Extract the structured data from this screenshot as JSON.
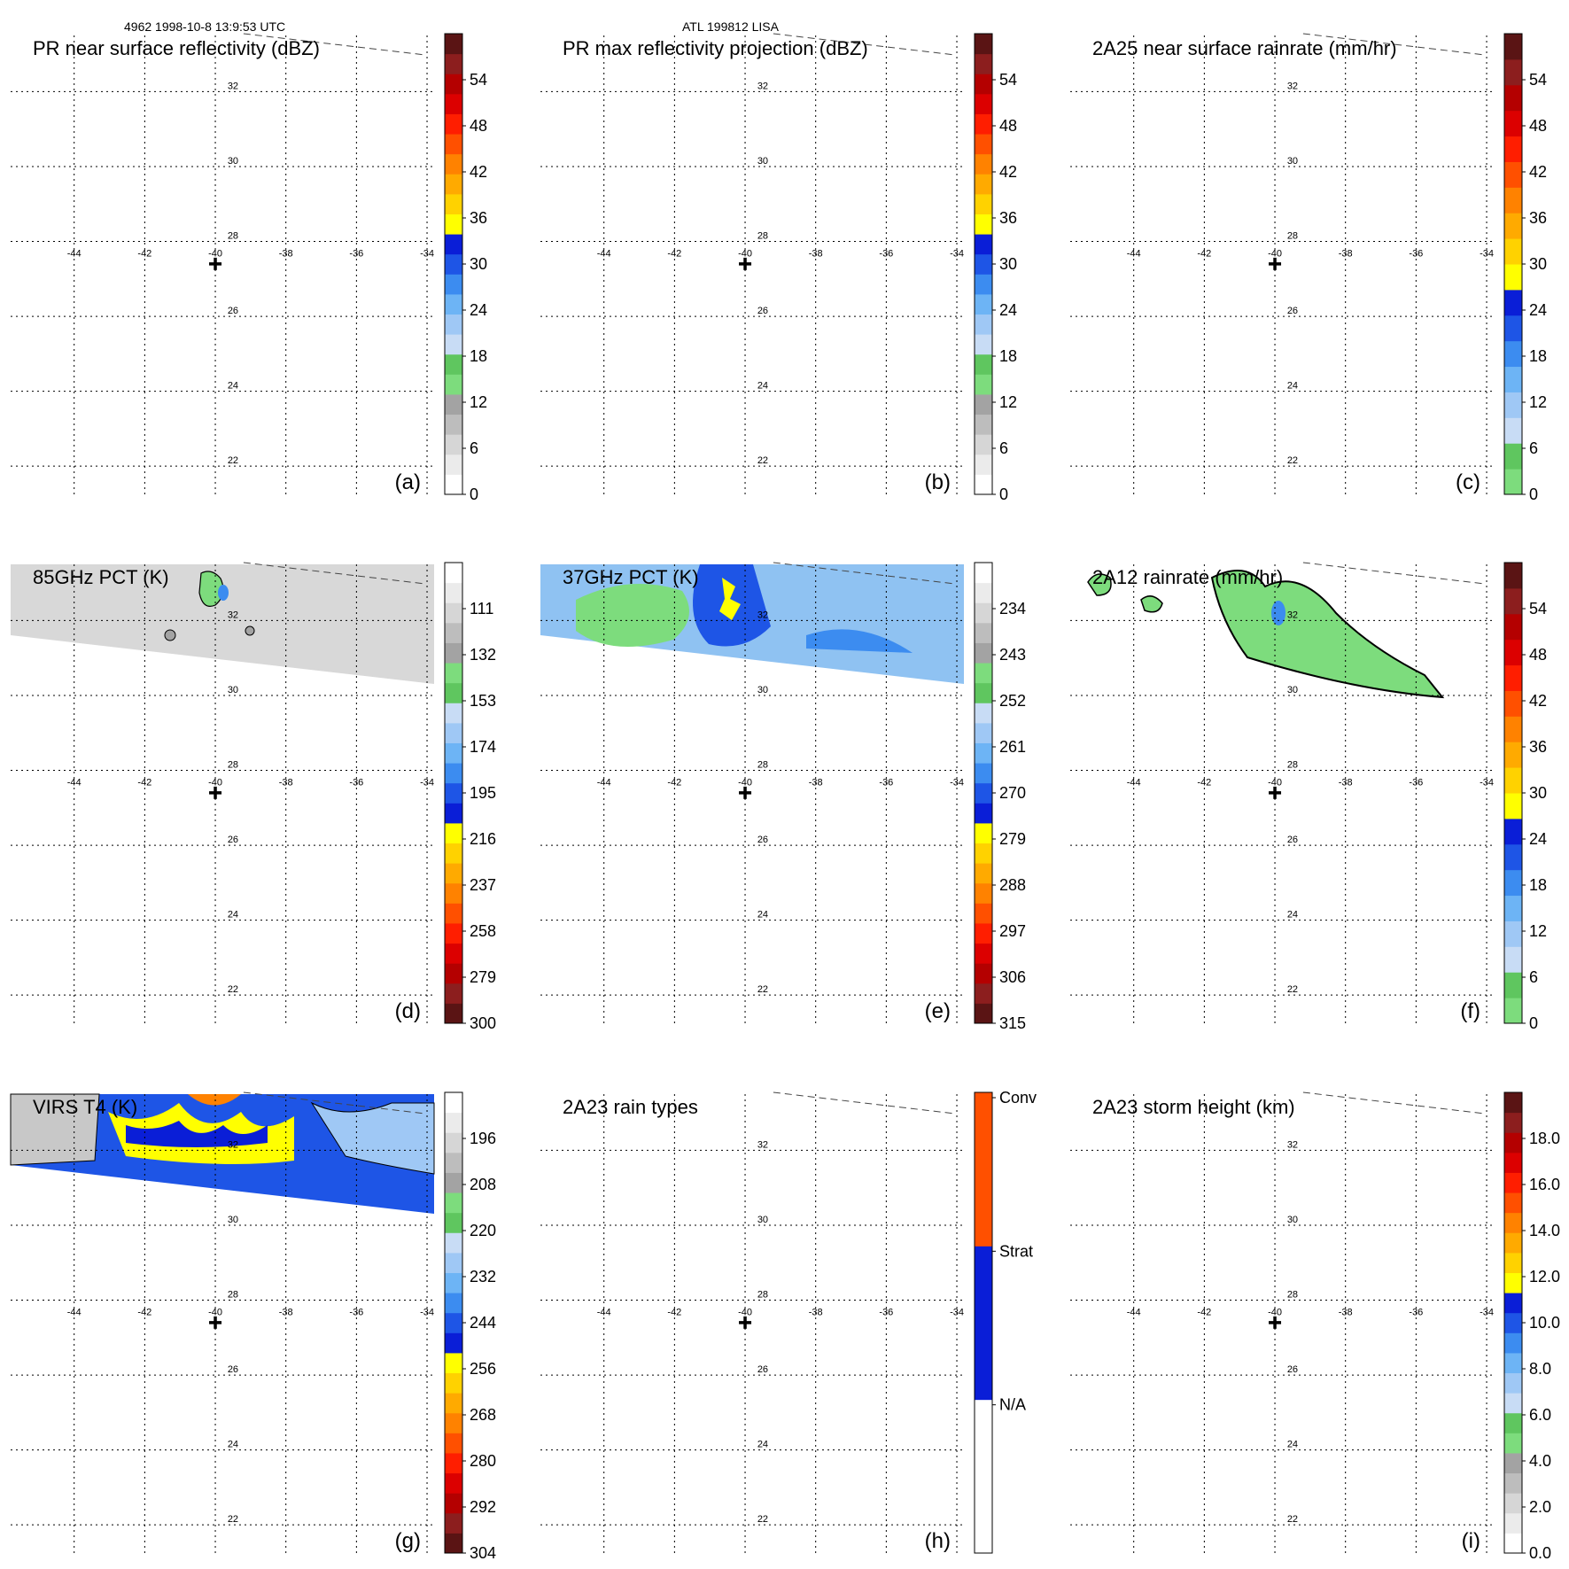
{
  "header": {
    "left": "4962 1998-10-8 13:9:53 UTC",
    "center": "ATL 199812 LISA"
  },
  "colors": {
    "dbz": [
      "#ffffff",
      "#ebebeb",
      "#d6d6d6",
      "#bdbdbd",
      "#a3a3a3",
      "#7ddc7d",
      "#5fc65f",
      "#c8dcf5",
      "#9fc8f5",
      "#6db4f5",
      "#3c8cf0",
      "#1e55e6",
      "#0a1ed7",
      "#ffff00",
      "#ffd200",
      "#ffaa00",
      "#ff8200",
      "#ff5000",
      "#ff1e00",
      "#dc0000",
      "#b40000",
      "#8c1e1e",
      "#5a1414"
    ],
    "rain": [
      "#7ddc7d",
      "#5fc65f",
      "#c8dcf5",
      "#9fc8f5",
      "#6db4f5",
      "#3c8cf0",
      "#1e55e6",
      "#0a1ed7",
      "#ffff00",
      "#ffd200",
      "#ffaa00",
      "#ff8200",
      "#ff5000",
      "#ff1e00",
      "#dc0000",
      "#b40000",
      "#8c1e1e",
      "#5a1414"
    ],
    "tb": [
      "#5a1414",
      "#8c1e1e",
      "#b40000",
      "#dc0000",
      "#ff1e00",
      "#ff5000",
      "#ff8200",
      "#ffaa00",
      "#ffd200",
      "#ffff00",
      "#0a1ed7",
      "#1e55e6",
      "#3c8cf0",
      "#6db4f5",
      "#9fc8f5",
      "#c8dcf5",
      "#5fc65f",
      "#7ddc7d",
      "#a3a3a3",
      "#bdbdbd",
      "#d6d6d6",
      "#ebebeb",
      "#ffffff"
    ],
    "height": [
      "#ffffff",
      "#ebebeb",
      "#d6d6d6",
      "#bdbdbd",
      "#a3a3a3",
      "#7ddc7d",
      "#5fc65f",
      "#c8dcf5",
      "#9fc8f5",
      "#6db4f5",
      "#3c8cf0",
      "#1e55e6",
      "#0a1ed7",
      "#ffff00",
      "#ffd200",
      "#ffaa00",
      "#ff8200",
      "#ff5000",
      "#ff1e00",
      "#dc0000",
      "#b40000",
      "#8c1e1e",
      "#5a1414"
    ],
    "types": [
      "#ffffff",
      "#0a1ed7",
      "#ff5000"
    ]
  },
  "chart_data": [
    {
      "type": "heatmap",
      "panel": "(a)",
      "title": "PR near surface reflectivity (dBZ)",
      "lon_ticks": [
        "-44",
        "-42",
        "-40",
        "-38",
        "-36",
        "-34"
      ],
      "lat_ticks": [
        "32",
        "30",
        "28",
        "26",
        "24",
        "22"
      ],
      "lon_range": [
        -45.8,
        -33.8
      ],
      "lat_range": [
        21.2,
        33.5
      ],
      "center": [
        -40,
        27.4
      ],
      "colorbar": {
        "labels": [
          "0",
          "6",
          "12",
          "18",
          "24",
          "30",
          "36",
          "42",
          "48",
          "54"
        ],
        "scale": "dbz"
      },
      "swath": null
    },
    {
      "type": "heatmap",
      "panel": "(b)",
      "title": "PR max reflectivity projection (dBZ)",
      "lon_ticks": [
        "-44",
        "-42",
        "-40",
        "-38",
        "-36",
        "-34"
      ],
      "lat_ticks": [
        "32",
        "30",
        "28",
        "26",
        "24",
        "22"
      ],
      "lon_range": [
        -45.8,
        -33.8
      ],
      "lat_range": [
        21.2,
        33.5
      ],
      "center": [
        -40,
        27.4
      ],
      "colorbar": {
        "labels": [
          "0",
          "6",
          "12",
          "18",
          "24",
          "30",
          "36",
          "42",
          "48",
          "54"
        ],
        "scale": "dbz"
      },
      "swath": null
    },
    {
      "type": "heatmap",
      "panel": "(c)",
      "title": "2A25 near surface rainrate (mm/hr)",
      "lon_ticks": [
        "-44",
        "-42",
        "-40",
        "-38",
        "-36",
        "-34"
      ],
      "lat_ticks": [
        "32",
        "30",
        "28",
        "26",
        "24",
        "22"
      ],
      "lon_range": [
        -45.8,
        -33.8
      ],
      "lat_range": [
        21.2,
        33.5
      ],
      "center": [
        -40,
        27.4
      ],
      "colorbar": {
        "labels": [
          "0",
          "6",
          "12",
          "18",
          "24",
          "30",
          "36",
          "42",
          "48",
          "54"
        ],
        "scale": "rain"
      },
      "swath": null
    },
    {
      "type": "heatmap",
      "panel": "(d)",
      "title": "85GHz PCT (K)",
      "lon_ticks": [
        "-44",
        "-42",
        "-40",
        "-38",
        "-36",
        "-34"
      ],
      "lat_ticks": [
        "32",
        "30",
        "28",
        "26",
        "24",
        "22"
      ],
      "lon_range": [
        -45.8,
        -33.8
      ],
      "lat_range": [
        21.2,
        33.5
      ],
      "center": [
        -40,
        27.4
      ],
      "colorbar": {
        "labels": [
          "300",
          "279",
          "258",
          "237",
          "216",
          "195",
          "174",
          "153",
          "132",
          "111"
        ],
        "scale": "tb"
      },
      "swath": "gray"
    },
    {
      "type": "heatmap",
      "panel": "(e)",
      "title": "37GHz PCT (K)",
      "lon_ticks": [
        "-44",
        "-42",
        "-40",
        "-38",
        "-36",
        "-34"
      ],
      "lat_ticks": [
        "32",
        "30",
        "28",
        "26",
        "24",
        "22"
      ],
      "lon_range": [
        -45.8,
        -33.8
      ],
      "lat_range": [
        21.2,
        33.5
      ],
      "center": [
        -40,
        27.4
      ],
      "colorbar": {
        "labels": [
          "315",
          "306",
          "297",
          "288",
          "279",
          "270",
          "261",
          "252",
          "243",
          "234"
        ],
        "scale": "tb"
      },
      "swath": "blue"
    },
    {
      "type": "heatmap",
      "panel": "(f)",
      "title": "2A12 rainrate (mm/hr)",
      "lon_ticks": [
        "-44",
        "-42",
        "-40",
        "-38",
        "-36",
        "-34"
      ],
      "lat_ticks": [
        "32",
        "30",
        "28",
        "26",
        "24",
        "22"
      ],
      "lon_range": [
        -45.8,
        -33.8
      ],
      "lat_range": [
        21.2,
        33.5
      ],
      "center": [
        -40,
        27.4
      ],
      "colorbar": {
        "labels": [
          "0",
          "6",
          "12",
          "18",
          "24",
          "30",
          "36",
          "42",
          "48",
          "54"
        ],
        "scale": "rain"
      },
      "swath": "green"
    },
    {
      "type": "heatmap",
      "panel": "(g)",
      "title": "VIRS T4 (K)",
      "lon_ticks": [
        "-44",
        "-42",
        "-40",
        "-38",
        "-36",
        "-34"
      ],
      "lat_ticks": [
        "32",
        "30",
        "28",
        "26",
        "24",
        "22"
      ],
      "lon_range": [
        -45.8,
        -33.8
      ],
      "lat_range": [
        21.2,
        33.5
      ],
      "center": [
        -40,
        27.4
      ],
      "colorbar": {
        "labels": [
          "304",
          "292",
          "280",
          "268",
          "256",
          "244",
          "232",
          "220",
          "208",
          "196"
        ],
        "scale": "tb"
      },
      "swath": "virs"
    },
    {
      "type": "heatmap",
      "panel": "(h)",
      "title": "2A23 rain types",
      "lon_ticks": [
        "-44",
        "-42",
        "-40",
        "-38",
        "-36",
        "-34"
      ],
      "lat_ticks": [
        "32",
        "30",
        "28",
        "26",
        "24",
        "22"
      ],
      "lon_range": [
        -45.8,
        -33.8
      ],
      "lat_range": [
        21.2,
        33.5
      ],
      "center": [
        -40,
        27.4
      ],
      "colorbar": {
        "labels": [
          "N/A",
          "Strat",
          "Conv"
        ],
        "scale": "types"
      },
      "swath": null
    },
    {
      "type": "heatmap",
      "panel": "(i)",
      "title": "2A23 storm height (km)",
      "lon_ticks": [
        "-44",
        "-42",
        "-40",
        "-38",
        "-36",
        "-34"
      ],
      "lat_ticks": [
        "32",
        "30",
        "28",
        "26",
        "24",
        "22"
      ],
      "lon_range": [
        -45.8,
        -33.8
      ],
      "lat_range": [
        21.2,
        33.5
      ],
      "center": [
        -40,
        27.4
      ],
      "colorbar": {
        "labels": [
          "0.0",
          "2.0",
          "4.0",
          "6.0",
          "8.0",
          "10.0",
          "12.0",
          "14.0",
          "16.0",
          "18.0"
        ],
        "scale": "height"
      },
      "swath": null
    }
  ]
}
